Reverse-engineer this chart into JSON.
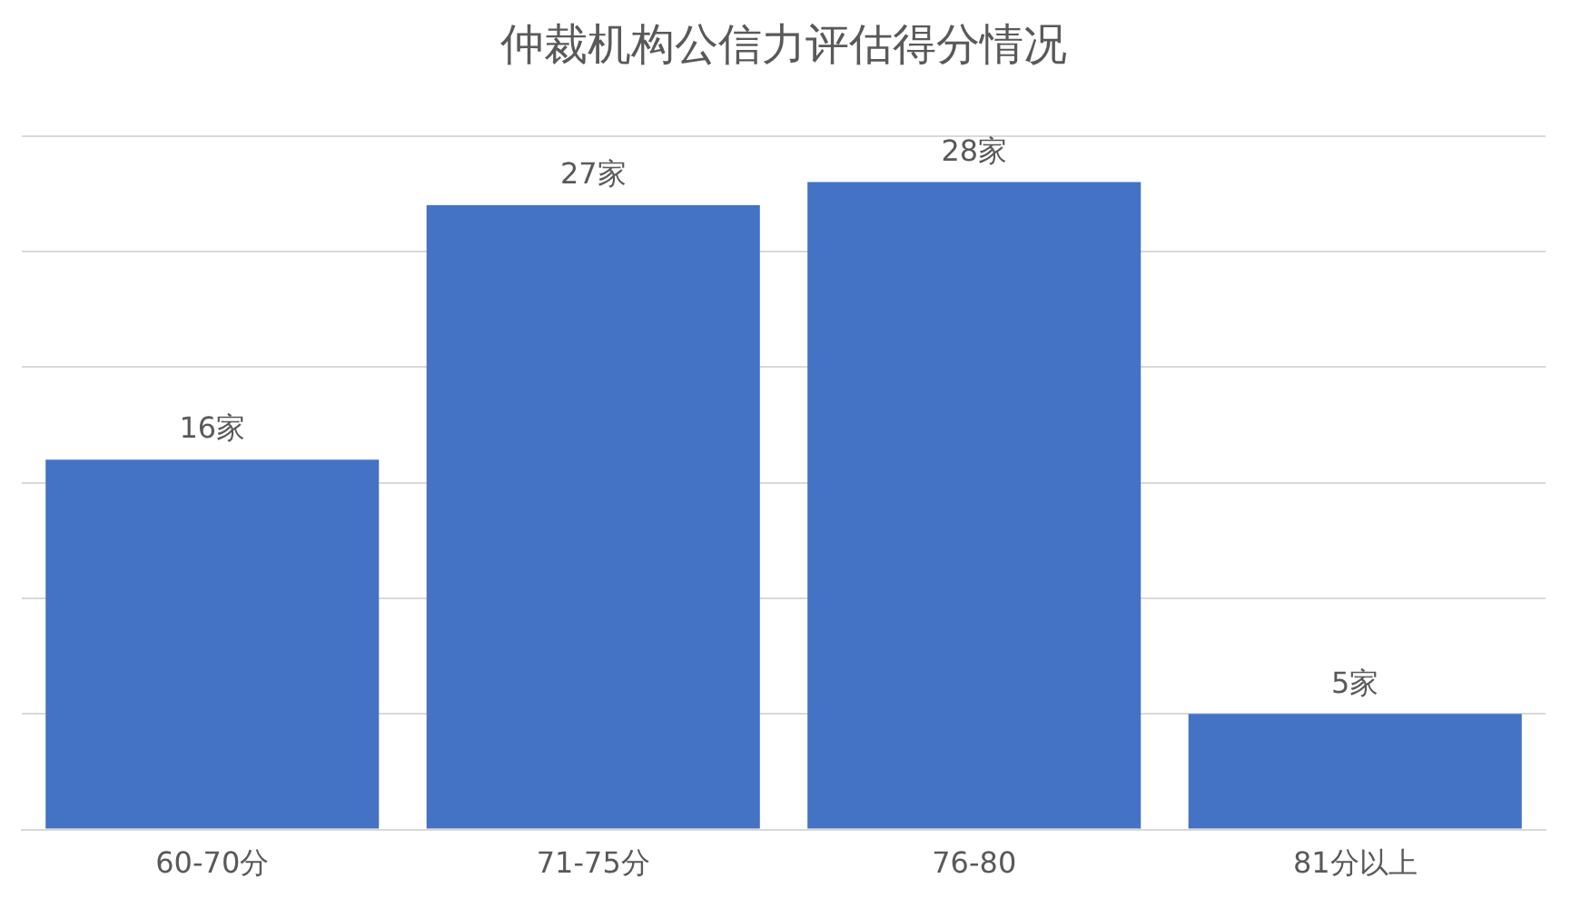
{
  "chart_data": {
    "type": "bar",
    "title": "仲裁机构公信力评估得分情况",
    "categories": [
      "60-70分",
      "71-75分",
      "76-80",
      "81分以上"
    ],
    "values": [
      16,
      27,
      28,
      5
    ],
    "value_labels": [
      "16家",
      "27家",
      "28家",
      "5家"
    ],
    "color": "#4472c4",
    "ylim": [
      0,
      30
    ],
    "yticks": [
      {
        "value": 0,
        "label": null
      },
      {
        "value": 5,
        "label": null
      },
      {
        "value": 10,
        "label": null
      },
      {
        "value": 15,
        "label": null
      },
      {
        "value": 20,
        "label": null
      },
      {
        "value": 25,
        "label": null
      },
      {
        "value": 30,
        "label": null
      }
    ],
    "grid": "y",
    "tick_labels": "x"
  }
}
